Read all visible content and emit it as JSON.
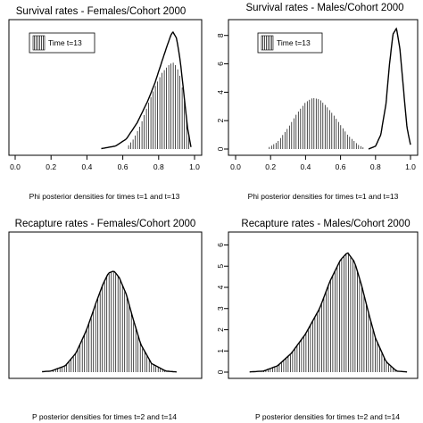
{
  "chart_data": [
    {
      "type": "area",
      "title": "Survival rates - Females/Cohort 2000",
      "xlabel": "Phi posterior densities for times t=1 and t=13",
      "ylabel": "",
      "xlim": [
        0.0,
        1.0
      ],
      "ylim": [
        0,
        6.2
      ],
      "xticks": [
        "0.0",
        "0.2",
        "0.4",
        "0.6",
        "0.8",
        "1.0"
      ],
      "yticks": [],
      "legend": {
        "position": "top-left",
        "label": "Time t=13"
      },
      "series": [
        {
          "name": "Time t=13",
          "style": "hatched",
          "x": [
            0.62,
            0.66,
            0.7,
            0.74,
            0.78,
            0.82,
            0.86,
            0.88,
            0.9,
            0.92,
            0.94,
            0.96,
            0.98
          ],
          "y": [
            0.05,
            0.5,
            1.2,
            2.2,
            3.1,
            3.8,
            4.2,
            4.3,
            4.1,
            3.6,
            2.6,
            1.3,
            0.1
          ]
        },
        {
          "style": "line",
          "x": [
            0.48,
            0.56,
            0.62,
            0.68,
            0.74,
            0.78,
            0.82,
            0.85,
            0.87,
            0.88,
            0.9,
            0.92,
            0.94,
            0.96,
            0.98
          ],
          "y": [
            0.02,
            0.15,
            0.5,
            1.3,
            2.4,
            3.3,
            4.4,
            5.2,
            5.7,
            5.8,
            5.5,
            4.4,
            2.8,
            1.1,
            0.1
          ]
        }
      ]
    },
    {
      "type": "area",
      "title": "Survival rates - Males/Cohort 2000",
      "xlabel": "Phi posterior densities for times t=1 and t=13",
      "ylabel": "",
      "xlim": [
        0.0,
        1.0
      ],
      "ylim": [
        0,
        8.8
      ],
      "xticks": [
        "0.0",
        "0.2",
        "0.4",
        "0.6",
        "0.8",
        "1.0"
      ],
      "yticks": [
        "0",
        "2",
        "4",
        "6",
        "8"
      ],
      "legend": {
        "position": "top-left",
        "label": "Time t=13"
      },
      "series": [
        {
          "name": "Time t=13",
          "style": "hatched",
          "x": [
            0.18,
            0.24,
            0.3,
            0.35,
            0.4,
            0.44,
            0.48,
            0.52,
            0.56,
            0.6,
            0.64,
            0.7,
            0.74
          ],
          "y": [
            0.05,
            0.5,
            1.5,
            2.5,
            3.3,
            3.6,
            3.5,
            3.0,
            2.4,
            1.7,
            1.0,
            0.3,
            0.05
          ]
        },
        {
          "style": "line",
          "x": [
            0.76,
            0.8,
            0.83,
            0.86,
            0.88,
            0.9,
            0.92,
            0.94,
            0.96,
            0.98,
            1.0
          ],
          "y": [
            0.0,
            0.2,
            1.0,
            3.2,
            6.0,
            8.1,
            8.5,
            7.0,
            4.2,
            1.5,
            0.3
          ]
        }
      ]
    },
    {
      "type": "area",
      "title": "Recapture rates - Females/Cohort 2000",
      "xlabel": "P posterior densities for times t=2 and t=14",
      "ylabel": "",
      "xlim": [
        0.0,
        1.0
      ],
      "ylim": [
        0,
        6.3
      ],
      "xticks": [],
      "yticks": [],
      "series": [
        {
          "style": "hatched",
          "x": [
            0.2,
            0.28,
            0.34,
            0.4,
            0.45,
            0.49,
            0.52,
            0.55,
            0.58,
            0.62,
            0.66,
            0.7,
            0.76,
            0.84
          ],
          "y": [
            0.05,
            0.3,
            0.9,
            2.0,
            3.2,
            4.1,
            4.6,
            4.7,
            4.4,
            3.6,
            2.4,
            1.3,
            0.4,
            0.05
          ]
        },
        {
          "style": "line",
          "x": [
            0.15,
            0.2,
            0.28,
            0.34,
            0.4,
            0.45,
            0.49,
            0.52,
            0.55,
            0.58,
            0.62,
            0.66,
            0.7,
            0.76,
            0.84,
            0.9
          ],
          "y": [
            0.02,
            0.05,
            0.3,
            0.9,
            2.0,
            3.2,
            4.1,
            4.6,
            4.7,
            4.4,
            3.6,
            2.4,
            1.3,
            0.4,
            0.05,
            0.01
          ]
        }
      ]
    },
    {
      "type": "area",
      "title": "Recapture rates - Males/Cohort 2000",
      "xlabel": "P posterior densities for times t=2 and t=14",
      "ylabel": "",
      "xlim": [
        0.5,
        1.0
      ],
      "ylim": [
        0,
        6.4
      ],
      "xticks": [],
      "yticks": [
        "0",
        "1",
        "2",
        "3",
        "4",
        "5",
        "6"
      ],
      "series": [
        {
          "style": "hatched",
          "x": [
            0.58,
            0.62,
            0.66,
            0.7,
            0.74,
            0.77,
            0.8,
            0.82,
            0.84,
            0.86,
            0.88,
            0.9,
            0.93,
            0.96
          ],
          "y": [
            0.05,
            0.3,
            0.9,
            1.8,
            3.0,
            4.3,
            5.3,
            5.6,
            5.2,
            4.1,
            2.8,
            1.6,
            0.5,
            0.05
          ]
        },
        {
          "style": "line",
          "x": [
            0.54,
            0.58,
            0.62,
            0.66,
            0.7,
            0.74,
            0.77,
            0.8,
            0.82,
            0.84,
            0.86,
            0.88,
            0.9,
            0.93,
            0.96,
            0.99
          ],
          "y": [
            0.01,
            0.05,
            0.3,
            0.9,
            1.8,
            3.0,
            4.3,
            5.3,
            5.65,
            5.2,
            4.1,
            2.8,
            1.6,
            0.5,
            0.05,
            0.01
          ]
        }
      ]
    }
  ]
}
